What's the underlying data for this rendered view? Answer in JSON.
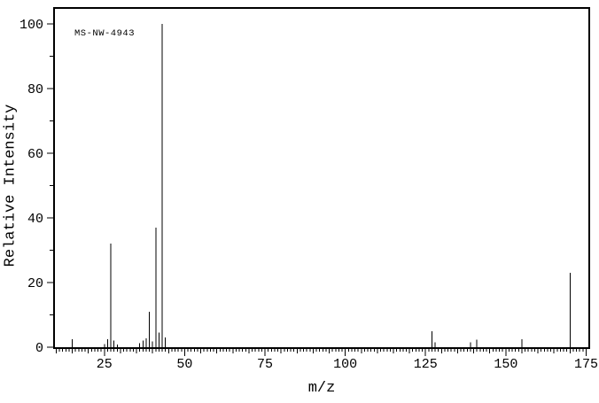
{
  "annotation": "MS-NW-4943",
  "chart_data": {
    "type": "bar",
    "subtype": "mass-spectrum",
    "title": "MS-NW-4943",
    "xlabel": "m/z",
    "ylabel": "Relative Intensity",
    "xlim": [
      9.6,
      175.7
    ],
    "ylim": [
      0,
      104.7
    ],
    "x_major_ticks": [
      25,
      50,
      75,
      100,
      125,
      150,
      175
    ],
    "x_medium_tick_every": 5,
    "x_minor_tick_every": 1,
    "y_major_ticks": [
      0,
      20,
      40,
      60,
      80,
      100
    ],
    "y_minor_tick_every": 10,
    "grid": false,
    "legend": false,
    "bar_color": "#000000",
    "axis_color": "#000000",
    "background_color": "#ffffff",
    "peaks": [
      [
        15,
        2.5
      ],
      [
        25,
        1.0
      ],
      [
        26,
        2.5
      ],
      [
        27,
        32
      ],
      [
        28,
        2.0
      ],
      [
        29,
        0.8
      ],
      [
        36,
        1.2
      ],
      [
        37,
        2.0
      ],
      [
        38,
        2.8
      ],
      [
        39,
        11
      ],
      [
        40,
        1.8
      ],
      [
        41,
        37
      ],
      [
        42,
        4.5
      ],
      [
        43,
        100
      ],
      [
        44,
        3.0
      ],
      [
        127,
        5.0
      ],
      [
        128,
        1.5
      ],
      [
        139,
        1.5
      ],
      [
        141,
        2.3
      ],
      [
        155,
        2.5
      ],
      [
        170,
        23
      ]
    ]
  }
}
